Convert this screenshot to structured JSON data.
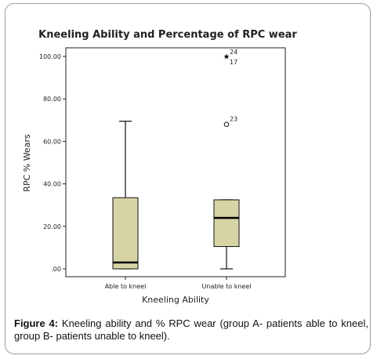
{
  "chart_data": {
    "type": "boxplot",
    "title": "Kneeling Ability and Percentage of RPC wear",
    "xlabel": "Kneeling Ability",
    "ylabel": "RPC % Wears",
    "ylim": [
      -2,
      106
    ],
    "yticks": [
      0,
      20,
      40,
      60,
      80,
      100
    ],
    "ytick_labels": [
      ".00",
      "20.00",
      "40.00",
      "60.00",
      "80.00",
      "100.00"
    ],
    "grid": false,
    "box_color": "#d6d3a5",
    "categories": [
      "Able to kneel",
      "Unable to kneel"
    ],
    "boxes": [
      {
        "category": "Able to kneel",
        "min": 0,
        "q1": 0,
        "median": 3,
        "q3": 33.5,
        "max": 69.5,
        "outliers": []
      },
      {
        "category": "Unable to kneel",
        "min": 0,
        "q1": 10.5,
        "median": 24,
        "q3": 32.5,
        "max": 32.5,
        "outliers": [
          {
            "value": 100,
            "marker": "star",
            "label": "24"
          },
          {
            "value": 100,
            "marker": "none",
            "label": "17"
          },
          {
            "value": 68,
            "marker": "circle",
            "label": "23"
          }
        ]
      }
    ]
  },
  "caption": {
    "figure_label": "Figure 4:",
    "text": " Kneeling ability and % RPC wear (group A- patients able to kneel, group B- patients unable to kneel)."
  }
}
